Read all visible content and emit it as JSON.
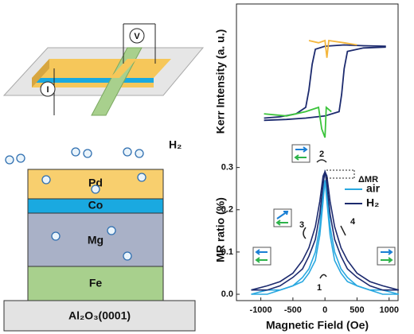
{
  "diagram": {
    "probes": [
      "I",
      "V"
    ],
    "gas": "H₂",
    "layers": [
      "Pd",
      "Co",
      "Mg",
      "Fe"
    ],
    "substrate": "Al₂O₃(0001)"
  },
  "chart_data": [
    {
      "type": "line",
      "ylabel": "Kerr Intensity (a. u.)",
      "xlim": [
        -1380,
        1140
      ],
      "ylim": [
        -1.8,
        1.8
      ],
      "series": [
        {
          "color": "#1c2a6e",
          "x": [
            -950,
            -700,
            -450,
            -300,
            -250,
            -200,
            -150,
            0,
            300,
            600,
            950
          ],
          "values": [
            -0.85,
            -0.82,
            -0.75,
            -0.6,
            -0.2,
            0.4,
            0.75,
            0.82,
            0.85,
            0.83,
            0.82
          ]
        },
        {
          "color": "#1c2a6e",
          "x": [
            950,
            600,
            350,
            300,
            260,
            220,
            0,
            -300,
            -600,
            -950
          ],
          "values": [
            0.8,
            0.78,
            0.7,
            0.3,
            -0.3,
            -0.7,
            -0.8,
            -0.85,
            -0.88,
            -0.9
          ]
        },
        {
          "color": "#f4b63c",
          "x": [
            -250,
            -100,
            0,
            30,
            60,
            300,
            500
          ],
          "values": [
            0.95,
            0.9,
            0.95,
            0.55,
            0.95,
            0.9,
            0.85
          ]
        },
        {
          "color": "#3cc43c",
          "x": [
            -950,
            -600,
            -300,
            -100,
            -50,
            0,
            20,
            100
          ],
          "values": [
            -0.75,
            -0.8,
            -0.7,
            -0.6,
            -1.1,
            -1.3,
            -0.6,
            -0.7
          ]
        }
      ]
    },
    {
      "type": "line",
      "xlabel": "Magnetic Field (Oe)",
      "ylabel": "MR ratio (%)",
      "xlim": [
        -1380,
        1140
      ],
      "ylim": [
        -0.015,
        0.32
      ],
      "xticks": [
        -1000,
        -500,
        0,
        500,
        1000
      ],
      "yticks": [
        {
          "value": 0,
          "label": "0.0"
        },
        0.1,
        0.2,
        0.3
      ],
      "x": [
        -1150,
        -900,
        -700,
        -500,
        -350,
        -250,
        -150,
        -80,
        -30,
        0,
        30,
        80,
        150,
        250,
        350,
        500,
        700,
        900,
        1150
      ],
      "series": [
        {
          "name": "air",
          "color": "#29a8e0",
          "sweeps": [
            {
              "values": [
                0.0,
                0.01,
                0.01,
                0.02,
                0.04,
                0.06,
                0.1,
                0.16,
                0.25,
                0.27,
                0.22,
                0.14,
                0.08,
                0.05,
                0.03,
                0.02,
                0.01,
                0.0,
                0.0
              ]
            },
            {
              "values": [
                0.0,
                0.0,
                0.01,
                0.02,
                0.03,
                0.05,
                0.08,
                0.14,
                0.22,
                0.27,
                0.25,
                0.16,
                0.1,
                0.06,
                0.04,
                0.02,
                0.01,
                0.01,
                0.0
              ]
            }
          ]
        },
        {
          "name": "H₂",
          "color": "#1c2a6e",
          "sweeps": [
            {
              "values": [
                0.01,
                0.02,
                0.03,
                0.05,
                0.08,
                0.11,
                0.16,
                0.22,
                0.28,
                0.29,
                0.26,
                0.19,
                0.13,
                0.09,
                0.06,
                0.04,
                0.02,
                0.01,
                0.01
              ]
            },
            {
              "values": [
                0.01,
                0.01,
                0.02,
                0.04,
                0.06,
                0.09,
                0.13,
                0.19,
                0.26,
                0.29,
                0.28,
                0.22,
                0.16,
                0.11,
                0.08,
                0.05,
                0.03,
                0.02,
                0.01
              ]
            }
          ]
        }
      ],
      "annotations": [
        "1",
        "2",
        "3",
        "4",
        "ΔMR"
      ]
    }
  ]
}
